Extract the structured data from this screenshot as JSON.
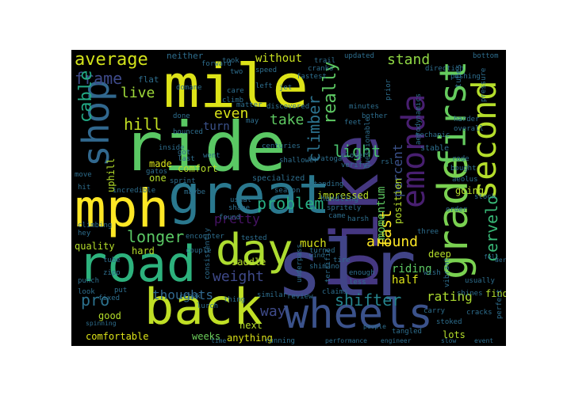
{
  "words": {
    "ride": "ride",
    "bike": "bike",
    "slr": "slr",
    "mile": "mile",
    "great": "great",
    "mph": "mph",
    "road": "road",
    "back": "back",
    "wheels": "wheels",
    "day": "day",
    "shop": "shop",
    "grade": "grade",
    "first": "first",
    "second": "second",
    "emonda": "emonda",
    "average": "average",
    "frame": "frame",
    "cable": "cable",
    "hill": "hill",
    "live": "live",
    "even": "even",
    "take": "take",
    "turn": "turn",
    "really": "really",
    "climber": "climber",
    "light": "light",
    "stand": "stand",
    "without": "without",
    "percent": "percent",
    "fast": "fast",
    "cervelo": "cervelo",
    "problem": "problem",
    "longer": "longer",
    "weight": "weight",
    "pretty": "pretty",
    "around": "around",
    "momentum": "momentum",
    "pro": "pro",
    "thoughts": "thoughts",
    "way": "way",
    "shifter": "shifter",
    "rating": "rating",
    "riding": "riding",
    "half": "half",
    "much": "much",
    "impressed": "impressed",
    "comfortable": "comfortable",
    "weeks": "weeks",
    "anything": "anything",
    "next": "next",
    "lots": "lots",
    "good": "good",
    "saddle": "saddle",
    "quality": "quality",
    "hard": "hard",
    "uphill": "uphill",
    "made": "made",
    "one": "one",
    "comfort": "comfort",
    "going": "going",
    "position": "position",
    "deep": "deep",
    "find": "find",
    "new": "new",
    "neither": "neither",
    "two": "two",
    "flat": "flat",
    "may": "may",
    "climbing": "climbing",
    "handling": "handling",
    "specialized": "specialized",
    "stable": "stable",
    "tube": "tube",
    "zipp": "zipp",
    "usually": "usually",
    "stoked": "stoked",
    "carry": "carry",
    "vibrant": "vibrant",
    "shimano": "shimano",
    "performance": "performance",
    "engineer": "engineer",
    "tangled": "tangled",
    "running": "running",
    "spinning": "spinning",
    "time": "time",
    "aeolus": "aeolus",
    "order": "order",
    "stock": "stock",
    "cracks": "cracks",
    "bottom": "bottom",
    "tubes": "tubes",
    "pushing": "pushing",
    "pressure": "pressure",
    "direction": "direction",
    "updated": "updated",
    "forward": "forward",
    "took": "took",
    "care": "care",
    "climb": "climb",
    "speed": "speed",
    "left": "left",
    "jet": "jet",
    "fastest": "fastest",
    "cranks": "cranks",
    "trail": "trail",
    "matter": "matter",
    "discovered": "discovered",
    "minutes": "minutes",
    "bother": "bother",
    "feet": "feet",
    "prior": "prior",
    "aerodynamics": "aerodynamics",
    "overall": "overall",
    "harder": "harder",
    "mechanic": "mechanic",
    "rode": "rode",
    "bought": "bought",
    "questionable": "questionable",
    "saratoga": "saratoga",
    "verify": "verify",
    "rsl": "rsl",
    "closer": "closer",
    "centuries": "centuries",
    "shallower": "shallower",
    "incredible": "incredible",
    "hit": "hit",
    "move": "move",
    "gatos": "gatos",
    "inside": "inside",
    "got": "got",
    "last": "last",
    "went": "went",
    "domane": "domane",
    "done": "done",
    "bounced": "bounced",
    "sprint": "sprint",
    "maybe": "maybe",
    "encounter": "encounter",
    "couple": "couple",
    "consistently": "consistently",
    "tested": "tested",
    "found": "found",
    "usual": "usual",
    "shape": "shape",
    "punch": "punch",
    "fixed": "fixed",
    "put": "put",
    "look": "look",
    "hey": "hey",
    "creek": "creek",
    "thing": "thing",
    "lurch": "lurch",
    "similar": "similar",
    "review": "review",
    "claims": "claims",
    "underpass": "underpass",
    "tire": "tire",
    "enough": "enough",
    "less": "less",
    "terrific": "terrific",
    "turned": "turned",
    "wind": "wind",
    "season": "season",
    "standing": "standing",
    "spritely": "spritely",
    "came": "came",
    "harsh": "harsh",
    "three": "three",
    "wish": "wish",
    "shines": "shines",
    "perfect": "perfect",
    "event": "event",
    "aero": "aero",
    "fell": "fell",
    "slow": "slow",
    "people": "people",
    "easier": "easier",
    "hed": "hed",
    "advantage": "advantage",
    "ridden": "ridden",
    "regular": "regular",
    "magic": "magic",
    "drive": "drive",
    "descending": "descending",
    "improvement": "improvement",
    "ambitious": "ambitious",
    "stay": "stay",
    "many": "many",
    "fulcrum": "fulcrum",
    "tour": "tour",
    "heavy": "heavy"
  }
}
